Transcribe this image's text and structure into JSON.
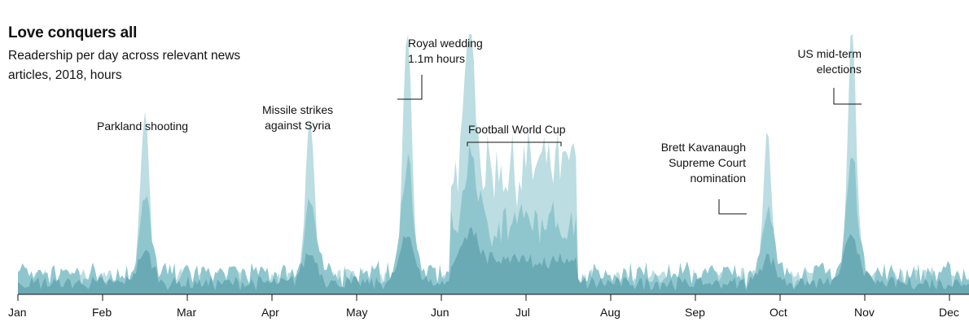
{
  "title": "Love conquers all",
  "subtitle": "Readership per day across relevant news articles, 2018, hours",
  "chart_data": {
    "type": "area",
    "title": "Love conquers all",
    "subtitle": "Readership per day across relevant news articles, 2018, hours",
    "xlabel": "",
    "ylabel": "",
    "x_ticks": [
      "Jan",
      "Feb",
      "Mar",
      "Apr",
      "May",
      "Jun",
      "Jul",
      "Aug",
      "Sep",
      "Oct",
      "Nov",
      "Dec"
    ],
    "ylim": [
      0,
      1.1
    ],
    "colors": {
      "light": "#bcdde1",
      "mid": "#8fc6ce",
      "dark": "#6aaab5",
      "line": "#121212"
    },
    "events": [
      {
        "name": "Parkland shooting",
        "month": 1.5,
        "value": 0.72
      },
      {
        "name": "Missile strikes against Syria",
        "month": 3.45,
        "value": 0.7
      },
      {
        "name": "Royal wedding",
        "month": 4.6,
        "value": 1.1
      },
      {
        "name": "Football World Cup",
        "month": 5.35,
        "value": 0.74
      },
      {
        "name": "Brett Kavanaugh Supreme Court nomination",
        "month": 8.85,
        "value": 0.62
      },
      {
        "name": "US mid-term elections",
        "month": 9.85,
        "value": 1.1
      }
    ],
    "annotations": [
      {
        "lines": [
          "Parkland shooting"
        ]
      },
      {
        "lines": [
          "Missile strikes",
          "against Syria"
        ]
      },
      {
        "lines": [
          "Royal wedding",
          "1.1m hours"
        ]
      },
      {
        "lines": [
          "Football World Cup"
        ]
      },
      {
        "lines": [
          "Brett Kavanaugh",
          "Supreme Court",
          "nomination"
        ]
      },
      {
        "lines": [
          "US mid-term",
          "elections"
        ]
      }
    ]
  }
}
